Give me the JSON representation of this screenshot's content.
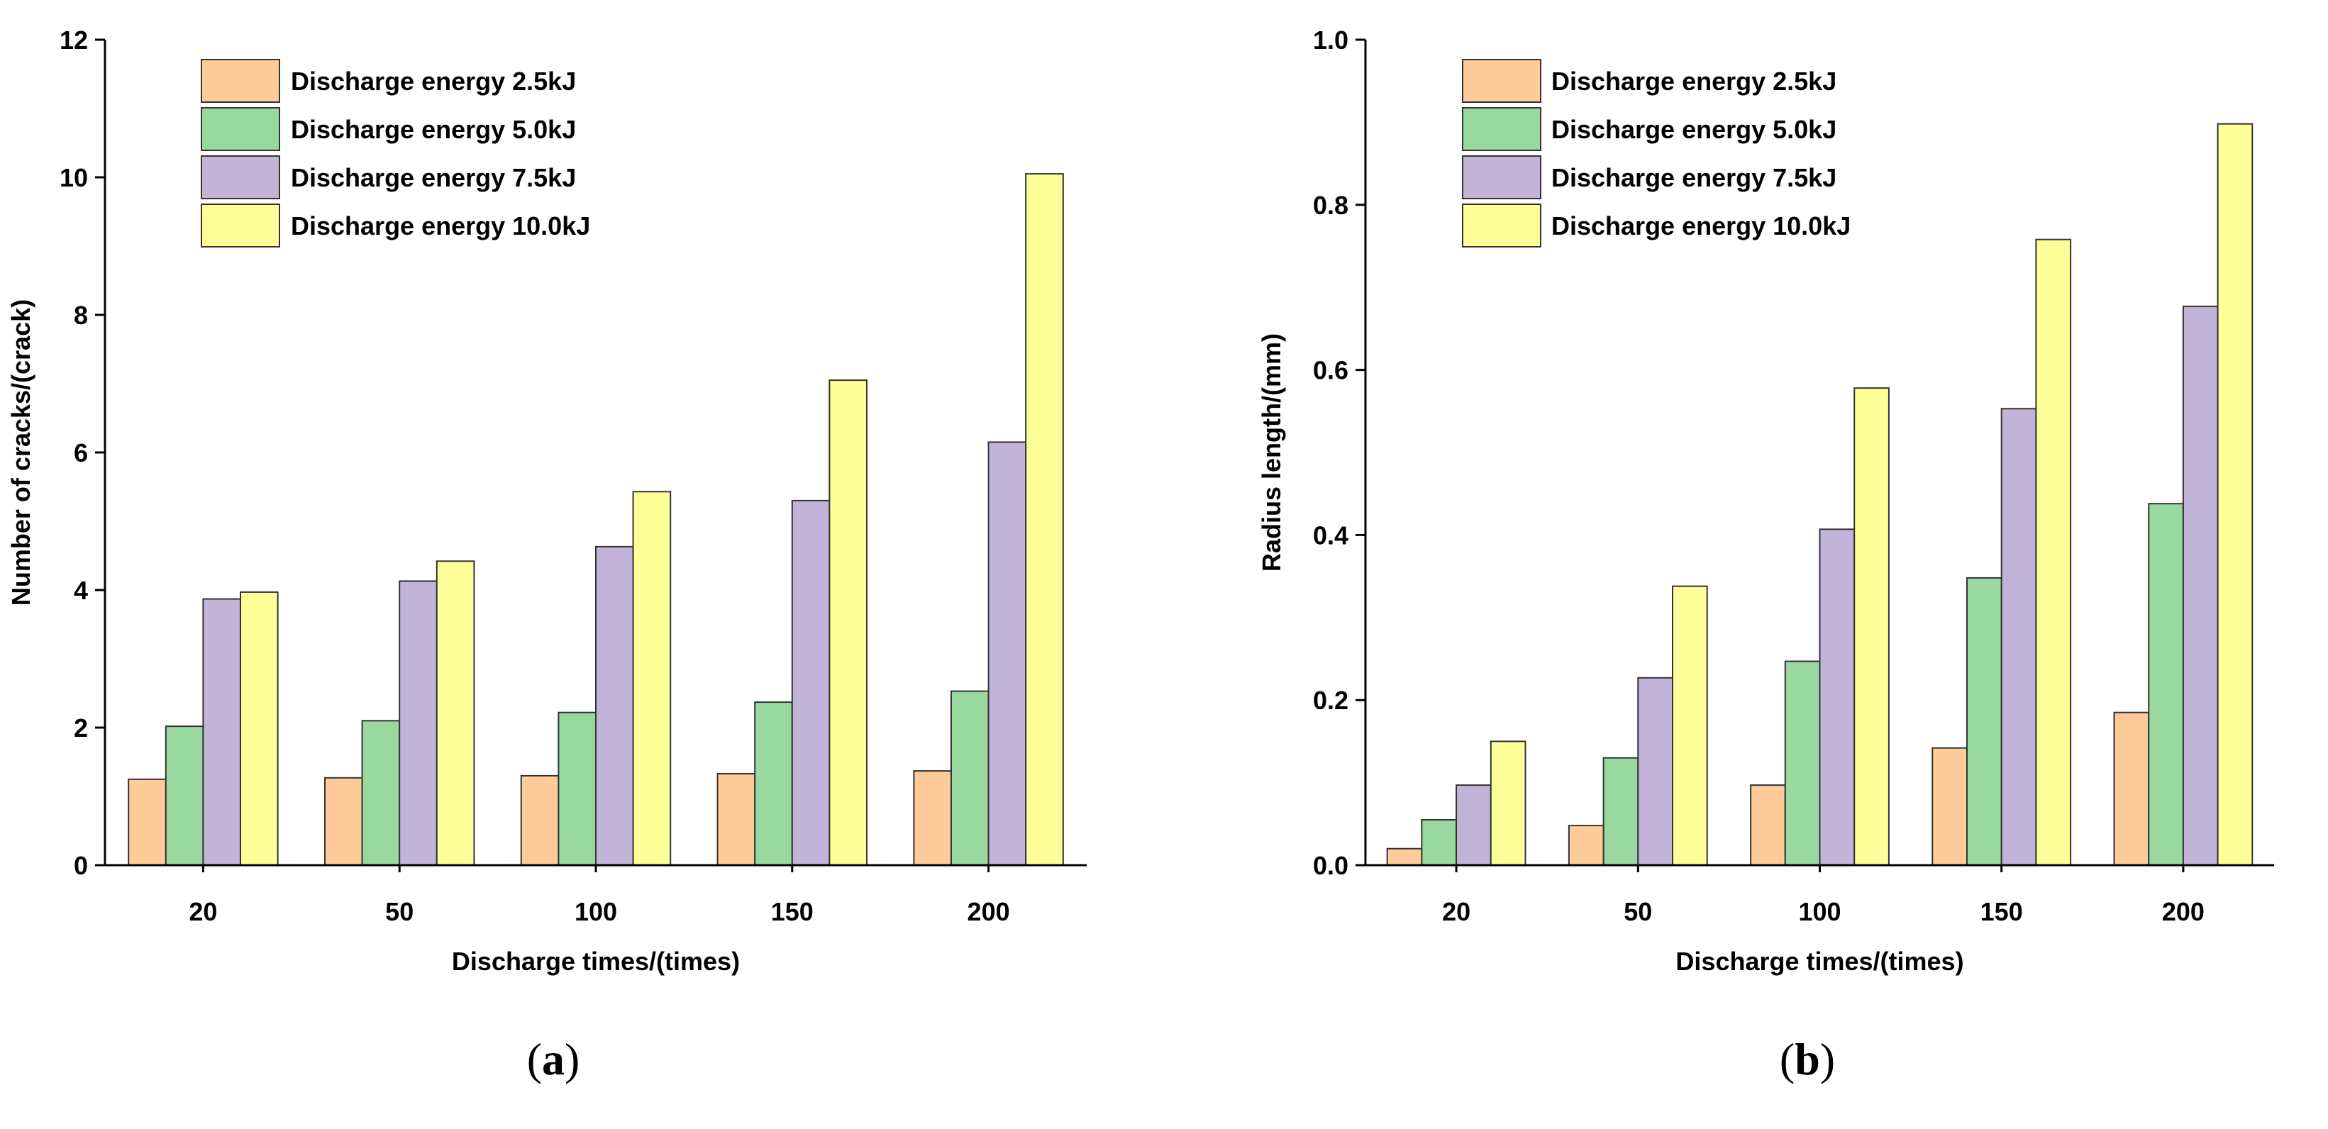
{
  "chart_data": [
    {
      "panel_label": "(a)",
      "panel_label_parts": [
        "(",
        "a",
        ")"
      ],
      "type": "bar",
      "categories": [
        "20",
        "50",
        "100",
        "150",
        "200"
      ],
      "xlabel": "Discharge times/(times)",
      "ylabel": "Number of cracks/(crack)",
      "ylim": [
        0,
        12
      ],
      "yticks": [
        0,
        2,
        4,
        6,
        8,
        10,
        12
      ],
      "ytick_labels": [
        "0",
        "2",
        "4",
        "6",
        "8",
        "10",
        "12"
      ],
      "grid": false,
      "legend_position": "top-left",
      "series": [
        {
          "name": "Discharge energy 2.5kJ",
          "color": "#FFCC99",
          "values": [
            1.25,
            1.27,
            1.3,
            1.33,
            1.37
          ]
        },
        {
          "name": "Discharge energy 5.0kJ",
          "color": "#99D9A0",
          "values": [
            2.02,
            2.1,
            2.22,
            2.37,
            2.53
          ]
        },
        {
          "name": "Discharge energy 7.5kJ",
          "color": "#C2B4D9",
          "values": [
            3.87,
            4.13,
            4.63,
            5.3,
            6.15
          ]
        },
        {
          "name": "Discharge energy 10.0kJ",
          "color": "#FFFF99",
          "values": [
            3.97,
            4.42,
            5.43,
            7.05,
            10.05
          ]
        }
      ]
    },
    {
      "panel_label": "(b)",
      "panel_label_parts": [
        "(",
        "b",
        ")"
      ],
      "type": "bar",
      "categories": [
        "20",
        "50",
        "100",
        "150",
        "200"
      ],
      "xlabel": "Discharge times/(times)",
      "ylabel": "Radius length/(mm)",
      "ylim": [
        0,
        1.0
      ],
      "yticks": [
        0,
        0.2,
        0.4,
        0.6,
        0.8,
        1.0
      ],
      "ytick_labels": [
        "0.0",
        "0.2",
        "0.4",
        "0.6",
        "0.8",
        "1.0"
      ],
      "grid": false,
      "legend_position": "top-left",
      "series": [
        {
          "name": "Discharge energy 2.5kJ",
          "color": "#FFCC99",
          "values": [
            0.02,
            0.048,
            0.097,
            0.142,
            0.185
          ]
        },
        {
          "name": "Discharge energy 5.0kJ",
          "color": "#99D9A0",
          "values": [
            0.055,
            0.13,
            0.247,
            0.348,
            0.438
          ]
        },
        {
          "name": "Discharge energy 7.5kJ",
          "color": "#C2B4D9",
          "values": [
            0.097,
            0.227,
            0.407,
            0.553,
            0.677
          ]
        },
        {
          "name": "Discharge energy 10.0kJ",
          "color": "#FFFF99",
          "values": [
            0.15,
            0.338,
            0.578,
            0.758,
            0.898
          ]
        }
      ]
    }
  ]
}
